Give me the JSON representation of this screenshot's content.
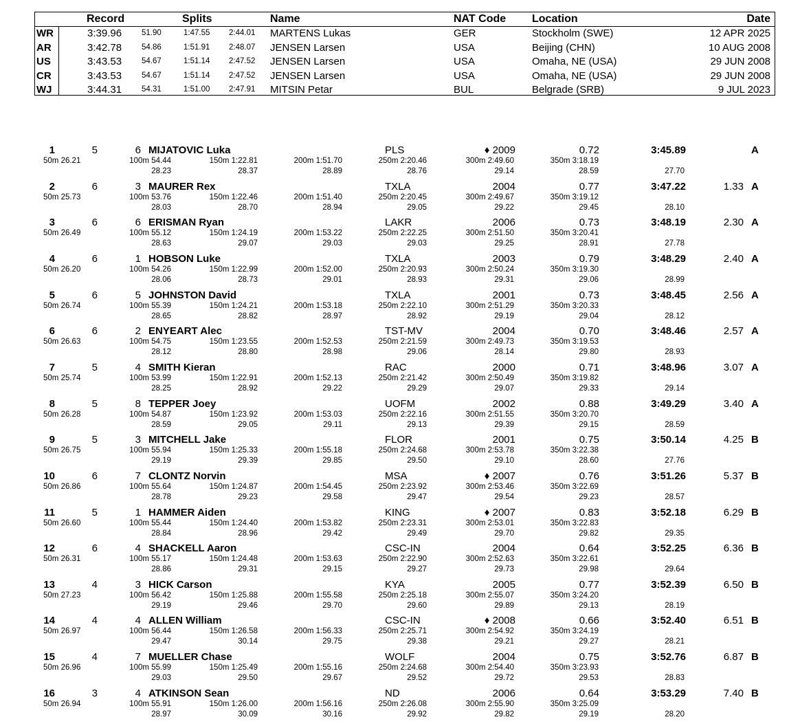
{
  "records": {
    "headers": {
      "record": "Record",
      "splits": "Splits",
      "name": "Name",
      "nat": "NAT Code",
      "location": "Location",
      "date": "Date"
    },
    "rows": [
      {
        "code": "WR",
        "time": "3:39.96",
        "s1": "51.90",
        "s2": "1:47.55",
        "s3": "2:44.01",
        "name": "MARTENS Lukas",
        "nat": "GER",
        "location": "Stockholm (SWE)",
        "date": "12 APR 2025"
      },
      {
        "code": "AR",
        "time": "3:42.78",
        "s1": "54.86",
        "s2": "1:51.91",
        "s3": "2:48.07",
        "name": "JENSEN Larsen",
        "nat": "USA",
        "location": "Beijing (CHN)",
        "date": "10 AUG 2008"
      },
      {
        "code": "US",
        "time": "3:43.53",
        "s1": "54.67",
        "s2": "1:51.14",
        "s3": "2:47.52",
        "name": "JENSEN Larsen",
        "nat": "USA",
        "location": "Omaha, NE (USA)",
        "date": "29 JUN 2008"
      },
      {
        "code": "CR",
        "time": "3:43.53",
        "s1": "54.67",
        "s2": "1:51.14",
        "s3": "2:47.52",
        "name": "JENSEN Larsen",
        "nat": "USA",
        "location": "Omaha, NE (USA)",
        "date": "29 JUN 2008"
      },
      {
        "code": "WJ",
        "time": "3:44.31",
        "s1": "54.31",
        "s2": "1:51.00",
        "s3": "2:47.91",
        "name": "MITSIN Petar",
        "nat": "BUL",
        "location": "Belgrade (SRB)",
        "date": "9 JUL 2023"
      }
    ]
  },
  "results": [
    {
      "rank": "1",
      "heat": "5",
      "lane": "6",
      "name": "MIJATOVIC Luka",
      "club": "PLS",
      "yob": "♦ 2009",
      "rt": "0.72",
      "time": "3:45.89",
      "behind": "",
      "final": "A",
      "s50": "50m 26.21",
      "s100": "100m 54.44",
      "s150": "150m 1:22.81",
      "s200": "200m 1:51.70",
      "s250": "250m 2:20.46",
      "s300": "300m 2:49.60",
      "s350": "350m 3:18.19",
      "d100": "28.23",
      "d150": "28.37",
      "d200": "28.89",
      "d250": "28.76",
      "d300": "29.14",
      "d350": "28.59",
      "d400": "27.70"
    },
    {
      "rank": "2",
      "heat": "6",
      "lane": "3",
      "name": "MAURER Rex",
      "club": "TXLA",
      "yob": "2004",
      "rt": "0.77",
      "time": "3:47.22",
      "behind": "1.33",
      "final": "A",
      "s50": "50m 25.73",
      "s100": "100m 53.76",
      "s150": "150m 1:22.46",
      "s200": "200m 1:51.40",
      "s250": "250m 2:20.45",
      "s300": "300m 2:49.67",
      "s350": "350m 3:19.12",
      "d100": "28.03",
      "d150": "28.70",
      "d200": "28.94",
      "d250": "29.05",
      "d300": "29.22",
      "d350": "29.45",
      "d400": "28.10"
    },
    {
      "rank": "3",
      "heat": "6",
      "lane": "6",
      "name": "ERISMAN Ryan",
      "club": "LAKR",
      "yob": "2006",
      "rt": "0.73",
      "time": "3:48.19",
      "behind": "2.30",
      "final": "A",
      "s50": "50m 26.49",
      "s100": "100m 55.12",
      "s150": "150m 1:24.19",
      "s200": "200m 1:53.22",
      "s250": "250m 2:22.25",
      "s300": "300m 2:51.50",
      "s350": "350m 3:20.41",
      "d100": "28.63",
      "d150": "29.07",
      "d200": "29.03",
      "d250": "29.03",
      "d300": "29.25",
      "d350": "28.91",
      "d400": "27.78"
    },
    {
      "rank": "4",
      "heat": "6",
      "lane": "1",
      "name": "HOBSON Luke",
      "club": "TXLA",
      "yob": "2003",
      "rt": "0.79",
      "time": "3:48.29",
      "behind": "2.40",
      "final": "A",
      "s50": "50m 26.20",
      "s100": "100m 54.26",
      "s150": "150m 1:22.99",
      "s200": "200m 1:52.00",
      "s250": "250m 2:20.93",
      "s300": "300m 2:50.24",
      "s350": "350m 3:19.30",
      "d100": "28.06",
      "d150": "28.73",
      "d200": "29.01",
      "d250": "28.93",
      "d300": "29.31",
      "d350": "29.06",
      "d400": "28.99"
    },
    {
      "rank": "5",
      "heat": "6",
      "lane": "5",
      "name": "JOHNSTON David",
      "club": "TXLA",
      "yob": "2001",
      "rt": "0.73",
      "time": "3:48.45",
      "behind": "2.56",
      "final": "A",
      "s50": "50m 26.74",
      "s100": "100m 55.39",
      "s150": "150m 1:24.21",
      "s200": "200m 1:53.18",
      "s250": "250m 2:22.10",
      "s300": "300m 2:51.29",
      "s350": "350m 3:20.33",
      "d100": "28.65",
      "d150": "28.82",
      "d200": "28.97",
      "d250": "28.92",
      "d300": "29.19",
      "d350": "29.04",
      "d400": "28.12"
    },
    {
      "rank": "6",
      "heat": "6",
      "lane": "2",
      "name": "ENYEART Alec",
      "club": "TST-MV",
      "yob": "2004",
      "rt": "0.70",
      "time": "3:48.46",
      "behind": "2.57",
      "final": "A",
      "s50": "50m 26.63",
      "s100": "100m 54.75",
      "s150": "150m 1:23.55",
      "s200": "200m 1:52.53",
      "s250": "250m 2:21.59",
      "s300": "300m 2:49.73",
      "s350": "350m 3:19.53",
      "d100": "28.12",
      "d150": "28.80",
      "d200": "28.98",
      "d250": "29.06",
      "d300": "28.14",
      "d350": "29.80",
      "d400": "28.93"
    },
    {
      "rank": "7",
      "heat": "5",
      "lane": "4",
      "name": "SMITH Kieran",
      "club": "RAC",
      "yob": "2000",
      "rt": "0.71",
      "time": "3:48.96",
      "behind": "3.07",
      "final": "A",
      "s50": "50m 25.74",
      "s100": "100m 53.99",
      "s150": "150m 1:22.91",
      "s200": "200m 1:52.13",
      "s250": "250m 2:21.42",
      "s300": "300m 2:50.49",
      "s350": "350m 3:19.82",
      "d100": "28.25",
      "d150": "28.92",
      "d200": "29.22",
      "d250": "29.29",
      "d300": "29.07",
      "d350": "29.33",
      "d400": "29.14"
    },
    {
      "rank": "8",
      "heat": "5",
      "lane": "8",
      "name": "TEPPER Joey",
      "club": "UOFM",
      "yob": "2002",
      "rt": "0.88",
      "time": "3:49.29",
      "behind": "3.40",
      "final": "A",
      "s50": "50m 26.28",
      "s100": "100m 54.87",
      "s150": "150m 1:23.92",
      "s200": "200m 1:53.03",
      "s250": "250m 2:22.16",
      "s300": "300m 2:51.55",
      "s350": "350m 3:20.70",
      "d100": "28.59",
      "d150": "29.05",
      "d200": "29.11",
      "d250": "29.13",
      "d300": "29.39",
      "d350": "29.15",
      "d400": "28.59"
    },
    {
      "rank": "9",
      "heat": "5",
      "lane": "3",
      "name": "MITCHELL Jake",
      "club": "FLOR",
      "yob": "2001",
      "rt": "0.75",
      "time": "3:50.14",
      "behind": "4.25",
      "final": "B",
      "s50": "50m 26.75",
      "s100": "100m 55.94",
      "s150": "150m 1:25.33",
      "s200": "200m 1:55.18",
      "s250": "250m 2:24.68",
      "s300": "300m 2:53.78",
      "s350": "350m 3:22.38",
      "d100": "29.19",
      "d150": "29.39",
      "d200": "29.85",
      "d250": "29.50",
      "d300": "29.10",
      "d350": "28.60",
      "d400": "27.76"
    },
    {
      "rank": "10",
      "heat": "6",
      "lane": "7",
      "name": "CLONTZ Norvin",
      "club": "MSA",
      "yob": "♦ 2007",
      "rt": "0.76",
      "time": "3:51.26",
      "behind": "5.37",
      "final": "B",
      "s50": "50m 26.86",
      "s100": "100m 55.64",
      "s150": "150m 1:24.87",
      "s200": "200m 1:54.45",
      "s250": "250m 2:23.92",
      "s300": "300m 2:53.46",
      "s350": "350m 3:22.69",
      "d100": "28.78",
      "d150": "29.23",
      "d200": "29.58",
      "d250": "29.47",
      "d300": "29.54",
      "d350": "29.23",
      "d400": "28.57"
    },
    {
      "rank": "11",
      "heat": "5",
      "lane": "1",
      "name": "HAMMER Aiden",
      "club": "KING",
      "yob": "♦ 2007",
      "rt": "0.83",
      "time": "3:52.18",
      "behind": "6.29",
      "final": "B",
      "s50": "50m 26.60",
      "s100": "100m 55.44",
      "s150": "150m 1:24.40",
      "s200": "200m 1:53.82",
      "s250": "250m 2:23.31",
      "s300": "300m 2:53.01",
      "s350": "350m 3:22.83",
      "d100": "28.84",
      "d150": "28.96",
      "d200": "29.42",
      "d250": "29.49",
      "d300": "29.70",
      "d350": "29.82",
      "d400": "29.35"
    },
    {
      "rank": "12",
      "heat": "6",
      "lane": "4",
      "name": "SHACKELL Aaron",
      "club": "CSC-IN",
      "yob": "2004",
      "rt": "0.64",
      "time": "3:52.25",
      "behind": "6.36",
      "final": "B",
      "s50": "50m 26.31",
      "s100": "100m 55.17",
      "s150": "150m 1:24.48",
      "s200": "200m 1:53.63",
      "s250": "250m 2:22.90",
      "s300": "300m 2:52.63",
      "s350": "350m 3:22.61",
      "d100": "28.86",
      "d150": "29.31",
      "d200": "29.15",
      "d250": "29.27",
      "d300": "29.73",
      "d350": "29.98",
      "d400": "29.64"
    },
    {
      "rank": "13",
      "heat": "4",
      "lane": "3",
      "name": "HICK Carson",
      "club": "KYA",
      "yob": "2005",
      "rt": "0.77",
      "time": "3:52.39",
      "behind": "6.50",
      "final": "B",
      "s50": "50m 27.23",
      "s100": "100m 56.42",
      "s150": "150m 1:25.88",
      "s200": "200m 1:55.58",
      "s250": "250m 2:25.18",
      "s300": "300m 2:55.07",
      "s350": "350m 3:24.20",
      "d100": "29.19",
      "d150": "29.46",
      "d200": "29.70",
      "d250": "29.60",
      "d300": "29.89",
      "d350": "29.13",
      "d400": "28.19"
    },
    {
      "rank": "14",
      "heat": "4",
      "lane": "4",
      "name": "ALLEN William",
      "club": "CSC-IN",
      "yob": "♦ 2008",
      "rt": "0.66",
      "time": "3:52.40",
      "behind": "6.51",
      "final": "B",
      "s50": "50m 26.97",
      "s100": "100m 56.44",
      "s150": "150m 1:26.58",
      "s200": "200m 1:56.33",
      "s250": "250m 2:25.71",
      "s300": "300m 2:54.92",
      "s350": "350m 3:24.19",
      "d100": "29.47",
      "d150": "30.14",
      "d200": "29.75",
      "d250": "29.38",
      "d300": "29.21",
      "d350": "29.27",
      "d400": "28.21"
    },
    {
      "rank": "15",
      "heat": "4",
      "lane": "7",
      "name": "MUELLER Chase",
      "club": "WOLF",
      "yob": "2004",
      "rt": "0.75",
      "time": "3:52.76",
      "behind": "6.87",
      "final": "B",
      "s50": "50m 26.96",
      "s100": "100m 55.99",
      "s150": "150m 1:25.49",
      "s200": "200m 1:55.16",
      "s250": "250m 2:24.68",
      "s300": "300m 2:54.40",
      "s350": "350m 3:23.93",
      "d100": "29.03",
      "d150": "29.50",
      "d200": "29.67",
      "d250": "29.52",
      "d300": "29.72",
      "d350": "29.53",
      "d400": "28.83"
    },
    {
      "rank": "16",
      "heat": "3",
      "lane": "4",
      "name": "ATKINSON Sean",
      "club": "ND",
      "yob": "2006",
      "rt": "0.64",
      "time": "3:53.29",
      "behind": "7.40",
      "final": "B",
      "s50": "50m 26.94",
      "s100": "100m 55.91",
      "s150": "150m 1:26.00",
      "s200": "200m 1:56.16",
      "s250": "250m 2:26.08",
      "s300": "300m 2:55.90",
      "s350": "350m 3:25.09",
      "d100": "28.97",
      "d150": "30.09",
      "d200": "30.16",
      "d250": "29.92",
      "d300": "29.82",
      "d350": "29.19",
      "d400": "28.20"
    }
  ]
}
